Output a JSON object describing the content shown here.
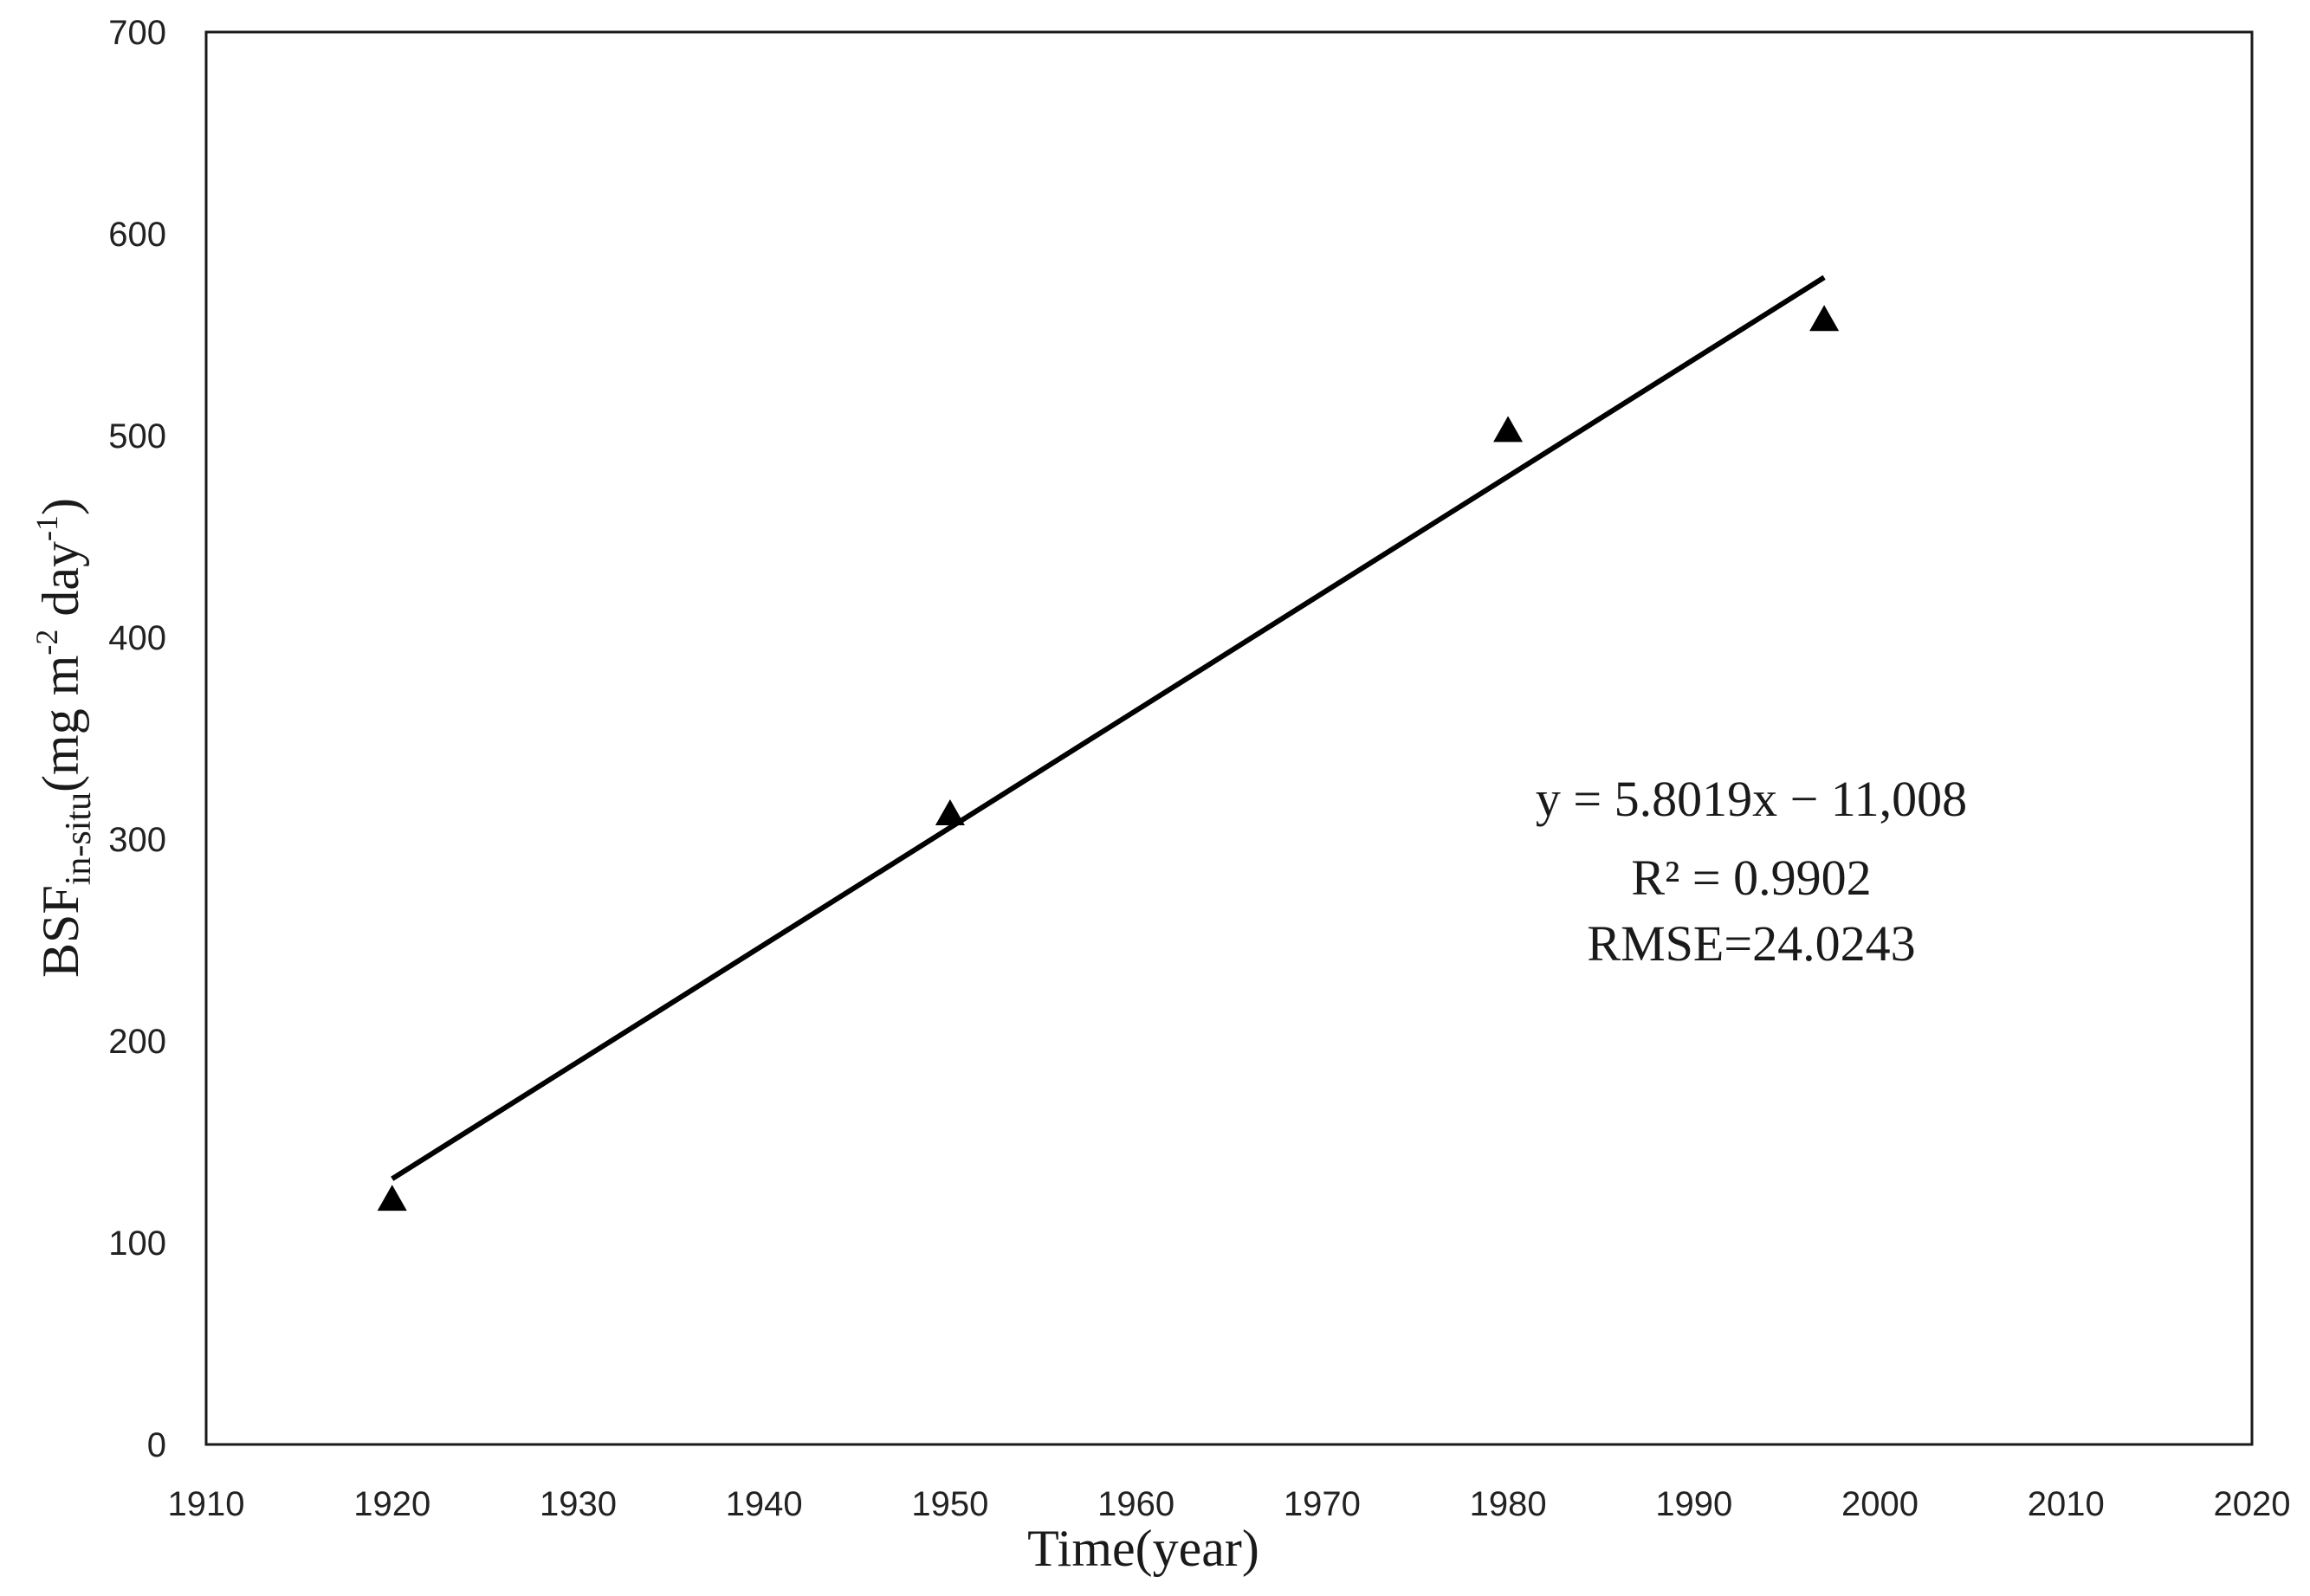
{
  "chart_data": {
    "type": "scatter",
    "title": "",
    "xlabel": "Time(year)",
    "ylabel": {
      "main": "BSF",
      "subscript": "in-situ",
      "unit_open": "(mg m",
      "unit_exp1": "-2",
      "unit_mid": " day",
      "unit_exp2": "-1",
      "unit_close": ")"
    },
    "xlim": [
      1910,
      2020
    ],
    "ylim": [
      0,
      700
    ],
    "xticks": [
      1910,
      1920,
      1930,
      1940,
      1950,
      1960,
      1970,
      1980,
      1990,
      2000,
      2010,
      2020
    ],
    "yticks": [
      0,
      100,
      200,
      300,
      400,
      500,
      600,
      700
    ],
    "grid": false,
    "legend": "none",
    "series": [
      {
        "marker": "triangle",
        "color": "#000000",
        "x": [
          1920,
          1950,
          1980,
          1997
        ],
        "y": [
          121,
          312,
          502,
          557
        ]
      }
    ],
    "trendline": {
      "slope": 5.8019,
      "intercept": -11008,
      "x_range": [
        1920,
        1997
      ],
      "color": "#000000"
    },
    "annotations": [
      "y = 5.8019x − 11,008",
      "R² = 0.9902",
      "RMSE=24.0243"
    ]
  }
}
